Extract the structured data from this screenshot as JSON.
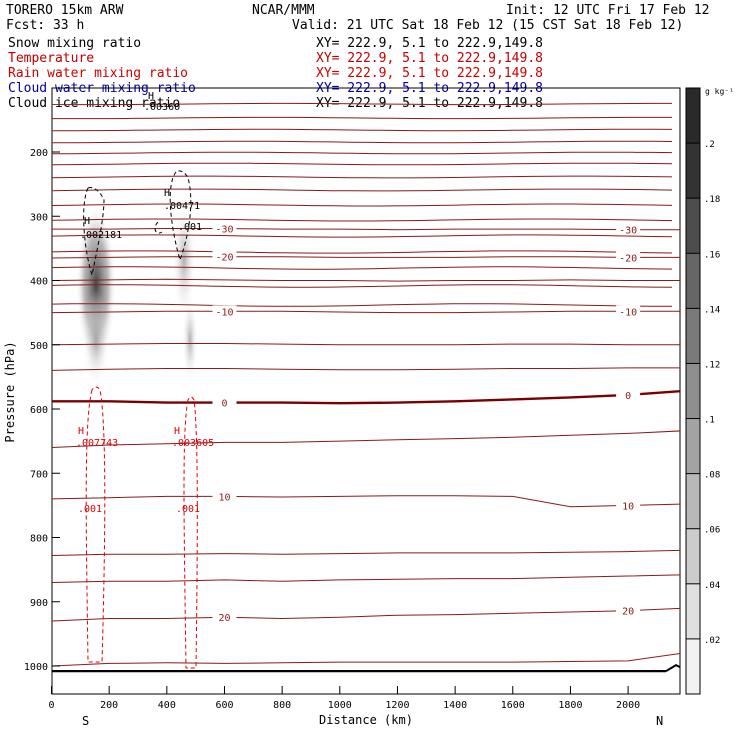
{
  "header": {
    "model": "TORERO  15km ARW",
    "org": "NCAR/MMM",
    "init": "Init: 12 UTC Fri 17 Feb 12",
    "fcst": "Fcst:   33 h",
    "valid": "Valid: 21 UTC Sat 18 Feb 12 (15 CST Sat 18 Feb 12)"
  },
  "fields": [
    {
      "name": "Snow mixing ratio",
      "xy": "",
      "color": "#000000"
    },
    {
      "name": "Temperature",
      "xy": "XY= 222.9,  5.1 to 222.9,149.8",
      "color": "#c00000"
    },
    {
      "name": "Rain water mixing ratio",
      "xy": "XY= 222.9,  5.1 to 222.9,149.8",
      "color": "#d00000"
    },
    {
      "name": "Cloud water mixing ratio",
      "xy": "XY= 222.9,  5.1 to 222.9,149.8",
      "color": "#0000aa"
    },
    {
      "name": "Cloud ice mixing ratio",
      "xy": "XY= 222.9,  5.1 to 222.9,149.8",
      "color": "#000000"
    }
  ],
  "snow_xy": "XY= 222.9,  5.1 to 222.9,149.8",
  "colorbar": {
    "unit": "g kg⁻¹",
    "ticks": [
      ".2",
      ".18",
      ".16",
      ".14",
      ".12",
      ".1",
      ".08",
      ".06",
      ".04",
      ".02"
    ],
    "colors": [
      "#333333",
      "#4d4d4d",
      "#666666",
      "#7a7a7a",
      "#8f8f8f",
      "#a3a3a3",
      "#b8b8b8",
      "#cccccc",
      "#e0e0e0",
      "#f2f2f2"
    ]
  },
  "annotations": {
    "snow_h1_label": "H",
    "snow_h1_value": ".002181",
    "snow_h2_label": "H",
    "snow_h2_value": ".00471",
    "snow_h2_contour": ".001",
    "ice_label": "H",
    "ice_value": ".00360",
    "rain_h1_label": "H",
    "rain_h1_value": ".007743",
    "rain_h2_label": "H",
    "rain_h2_value": ".003605",
    "rain_contour_1": ".001",
    "rain_contour_2": ".001",
    "south": "S",
    "north": "N"
  },
  "chart_data": {
    "type": "cross-section contour",
    "xlabel": "Distance (km)",
    "ylabel": "Pressure (hPa)",
    "xlim": [
      0,
      2190
    ],
    "ylim": [
      1050,
      100
    ],
    "x_ticks": [
      0,
      200,
      400,
      600,
      800,
      1000,
      1200,
      1400,
      1600,
      1800,
      2000
    ],
    "y_ticks": [
      200,
      300,
      400,
      500,
      600,
      700,
      800,
      900,
      1000
    ],
    "temperature_isotherms_C": [
      {
        "label": "-30",
        "pressure": [
          320,
          320,
          319,
          319,
          320,
          320,
          321,
          320,
          320,
          320,
          321,
          321
        ]
      },
      {
        "label": "-20",
        "pressure": [
          365,
          364,
          363,
          363,
          363,
          364,
          364,
          364,
          363,
          363,
          364,
          364
        ]
      },
      {
        "label": "-10",
        "pressure": [
          450,
          449,
          448,
          448,
          448,
          449,
          450,
          450,
          449,
          448,
          448,
          448
        ]
      },
      {
        "label": "0",
        "pressure": [
          588,
          588,
          590,
          590,
          590,
          591,
          590,
          588,
          585,
          582,
          578,
          572
        ]
      },
      {
        "label": "10",
        "pressure": [
          740,
          738,
          736,
          736,
          737,
          736,
          735,
          735,
          736,
          752,
          750,
          748
        ]
      },
      {
        "label": "20",
        "pressure": [
          930,
          926,
          926,
          924,
          926,
          924,
          921,
          920,
          918,
          916,
          914,
          910
        ]
      }
    ],
    "isotherm_x_km": [
      0,
      200,
      400,
      600,
      800,
      1000,
      1200,
      1400,
      1600,
      1800,
      2000,
      2190
    ],
    "snow_maxima": [
      {
        "x_km": 160,
        "pressure": 325,
        "value": 0.002181
      },
      {
        "x_km": 460,
        "pressure": 290,
        "value": 0.00471
      }
    ],
    "rain_maxima": [
      {
        "x_km": 160,
        "pressure": 665,
        "value": 0.007743
      },
      {
        "x_km": 480,
        "pressure": 665,
        "value": 0.003605
      }
    ],
    "surface_pressure": 1008
  }
}
